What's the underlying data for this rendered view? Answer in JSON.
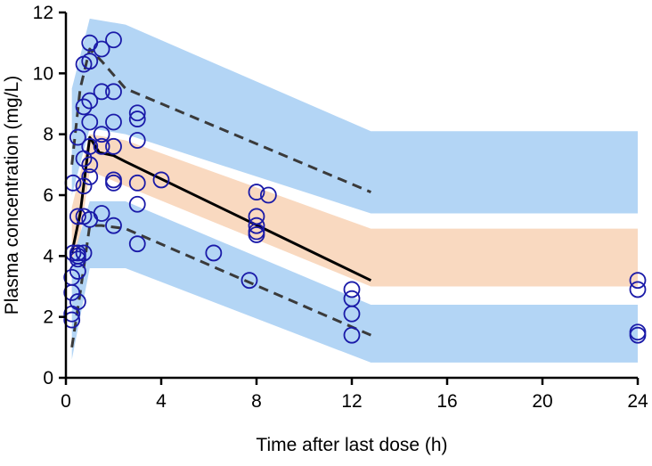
{
  "chart_data": {
    "type": "scatter",
    "xlabel": "Time after last dose (h)",
    "ylabel": "Plasma concentration (mg/L)",
    "xlim": [
      0,
      24
    ],
    "ylim": [
      0,
      12
    ],
    "xticks": [
      0,
      4,
      8,
      12,
      16,
      20,
      24
    ],
    "yticks": [
      0,
      2,
      4,
      6,
      8,
      10,
      12
    ],
    "grid": false,
    "bands": [
      {
        "kind": "upper",
        "color": "#b3d5f5",
        "upper": [
          [
            0.25,
            9.5
          ],
          [
            1.0,
            11.8
          ],
          [
            2.5,
            11.6
          ],
          [
            12.8,
            8.1
          ],
          [
            24,
            8.1
          ]
        ],
        "lower": [
          [
            0.25,
            6.0
          ],
          [
            1.0,
            8.2
          ],
          [
            2.5,
            8.0
          ],
          [
            12.8,
            5.4
          ],
          [
            24,
            5.4
          ]
        ]
      },
      {
        "kind": "median",
        "color": "#f9d9c0",
        "upper": [
          [
            0.25,
            5.6
          ],
          [
            1.0,
            8.0
          ],
          [
            2.5,
            7.8
          ],
          [
            12.8,
            4.9
          ],
          [
            24,
            4.9
          ]
        ],
        "lower": [
          [
            0.25,
            2.8
          ],
          [
            1.0,
            6.8
          ],
          [
            2.5,
            6.3
          ],
          [
            12.8,
            3.0
          ],
          [
            24,
            3.0
          ]
        ]
      },
      {
        "kind": "lower",
        "color": "#b3d5f5",
        "upper": [
          [
            0.25,
            3.8
          ],
          [
            1.0,
            5.8
          ],
          [
            2.5,
            5.8
          ],
          [
            12.8,
            2.4
          ],
          [
            24,
            2.4
          ]
        ],
        "lower": [
          [
            0.25,
            0.6
          ],
          [
            1.0,
            3.6
          ],
          [
            2.5,
            3.6
          ],
          [
            12.8,
            0.5
          ],
          [
            24,
            0.5
          ]
        ]
      }
    ],
    "lines": [
      {
        "style": "solid",
        "color": "#000000",
        "points": [
          [
            0.25,
            4.1
          ],
          [
            0.6,
            5.4
          ],
          [
            1.0,
            7.9
          ],
          [
            1.4,
            7.4
          ],
          [
            2.0,
            7.3
          ],
          [
            2.5,
            7.1
          ],
          [
            12.8,
            3.2
          ]
        ]
      },
      {
        "style": "dashed",
        "color": "#3a3a3a",
        "points": [
          [
            0.25,
            7.0
          ],
          [
            0.6,
            9.5
          ],
          [
            1.0,
            10.8
          ],
          [
            1.5,
            10.4
          ],
          [
            2.5,
            9.5
          ],
          [
            12.8,
            6.1
          ]
        ]
      },
      {
        "style": "dashed",
        "color": "#3a3a3a",
        "points": [
          [
            0.25,
            1.0
          ],
          [
            0.6,
            2.8
          ],
          [
            1.0,
            5.0
          ],
          [
            1.5,
            5.0
          ],
          [
            2.5,
            4.9
          ],
          [
            12.8,
            1.4
          ]
        ]
      }
    ],
    "points": [
      [
        0.25,
        3.3
      ],
      [
        0.25,
        2.8
      ],
      [
        0.25,
        2.1
      ],
      [
        0.25,
        1.9
      ],
      [
        0.3,
        6.4
      ],
      [
        0.3,
        4.1
      ],
      [
        0.5,
        3.9
      ],
      [
        0.5,
        3.5
      ],
      [
        0.5,
        2.5
      ],
      [
        0.5,
        4.1
      ],
      [
        0.5,
        4.0
      ],
      [
        0.5,
        7.9
      ],
      [
        0.5,
        5.3
      ],
      [
        0.75,
        10.3
      ],
      [
        0.75,
        8.9
      ],
      [
        0.75,
        7.2
      ],
      [
        0.75,
        6.3
      ],
      [
        0.75,
        5.3
      ],
      [
        0.75,
        4.1
      ],
      [
        1.0,
        11.0
      ],
      [
        1.0,
        10.4
      ],
      [
        1.0,
        9.1
      ],
      [
        1.0,
        8.4
      ],
      [
        1.0,
        7.6
      ],
      [
        1.0,
        7.0
      ],
      [
        1.0,
        6.6
      ],
      [
        1.0,
        5.2
      ],
      [
        1.5,
        10.8
      ],
      [
        1.5,
        9.4
      ],
      [
        1.5,
        8.0
      ],
      [
        1.5,
        7.6
      ],
      [
        1.5,
        5.4
      ],
      [
        2.0,
        11.1
      ],
      [
        2.0,
        9.4
      ],
      [
        2.0,
        8.4
      ],
      [
        2.0,
        7.6
      ],
      [
        2.0,
        6.5
      ],
      [
        2.0,
        6.4
      ],
      [
        2.0,
        5.0
      ],
      [
        3.0,
        8.7
      ],
      [
        3.0,
        8.5
      ],
      [
        3.0,
        7.8
      ],
      [
        3.0,
        6.4
      ],
      [
        3.0,
        5.7
      ],
      [
        3.0,
        4.4
      ],
      [
        4.0,
        6.5
      ],
      [
        6.2,
        4.1
      ],
      [
        7.7,
        3.2
      ],
      [
        8.0,
        6.1
      ],
      [
        8.0,
        5.3
      ],
      [
        8.0,
        5.0
      ],
      [
        8.0,
        4.8
      ],
      [
        8.0,
        4.7
      ],
      [
        8.5,
        6.0
      ],
      [
        12.0,
        2.9
      ],
      [
        12.0,
        2.6
      ],
      [
        12.0,
        2.1
      ],
      [
        12.0,
        1.4
      ],
      [
        24.0,
        3.2
      ],
      [
        24.0,
        2.9
      ],
      [
        24.0,
        1.5
      ],
      [
        24.0,
        1.4
      ]
    ],
    "marker_color": "#1a1aa8"
  }
}
